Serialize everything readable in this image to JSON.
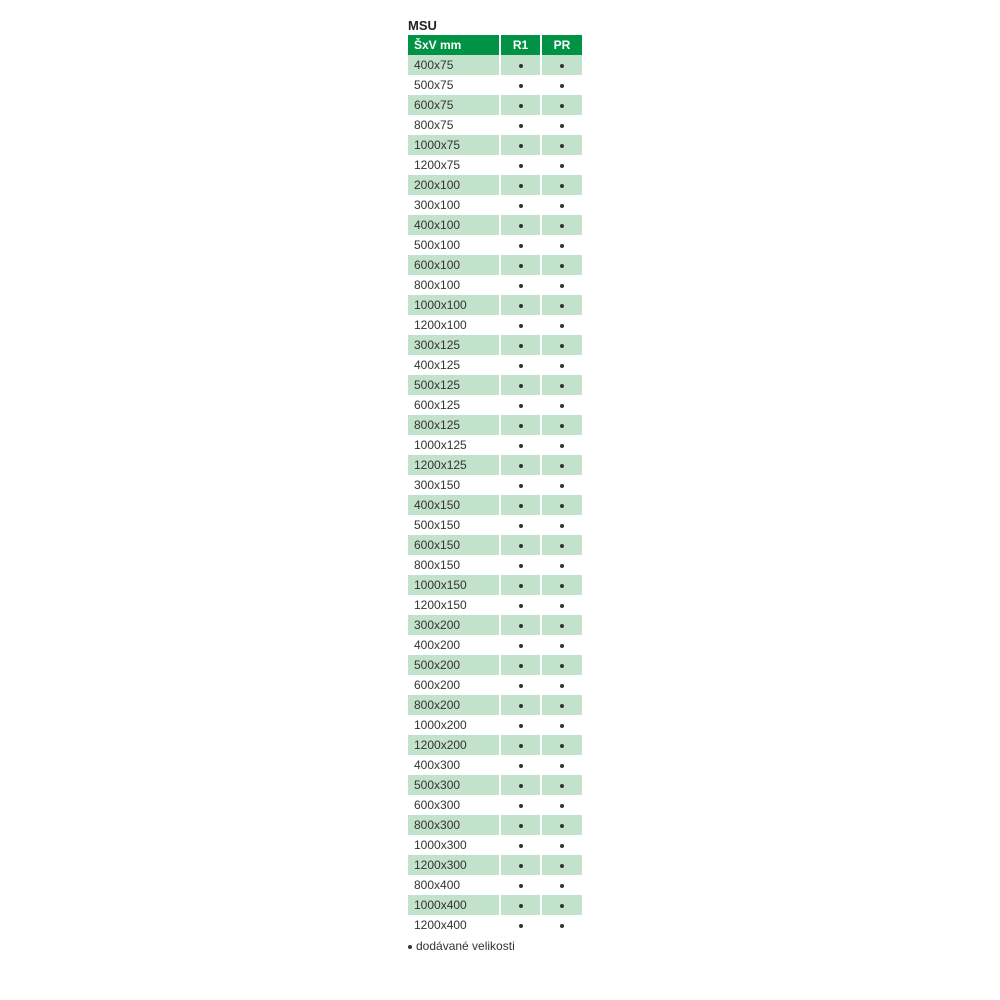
{
  "title": "MSU",
  "header_bg": "#009245",
  "row_alt_bg": "#c2e2cc",
  "row_bg": "#ffffff",
  "columns": [
    "ŠxV mm",
    "R1",
    "PR"
  ],
  "footnote": "dodávané velikosti",
  "rows": [
    {
      "size": "400x75",
      "r1": true,
      "pr": true
    },
    {
      "size": "500x75",
      "r1": true,
      "pr": true
    },
    {
      "size": "600x75",
      "r1": true,
      "pr": true
    },
    {
      "size": "800x75",
      "r1": true,
      "pr": true
    },
    {
      "size": "1000x75",
      "r1": true,
      "pr": true
    },
    {
      "size": "1200x75",
      "r1": true,
      "pr": true
    },
    {
      "size": "200x100",
      "r1": true,
      "pr": true
    },
    {
      "size": "300x100",
      "r1": true,
      "pr": true
    },
    {
      "size": "400x100",
      "r1": true,
      "pr": true
    },
    {
      "size": "500x100",
      "r1": true,
      "pr": true
    },
    {
      "size": "600x100",
      "r1": true,
      "pr": true
    },
    {
      "size": "800x100",
      "r1": true,
      "pr": true
    },
    {
      "size": "1000x100",
      "r1": true,
      "pr": true
    },
    {
      "size": "1200x100",
      "r1": true,
      "pr": true
    },
    {
      "size": "300x125",
      "r1": true,
      "pr": true
    },
    {
      "size": "400x125",
      "r1": true,
      "pr": true
    },
    {
      "size": "500x125",
      "r1": true,
      "pr": true
    },
    {
      "size": "600x125",
      "r1": true,
      "pr": true
    },
    {
      "size": "800x125",
      "r1": true,
      "pr": true
    },
    {
      "size": "1000x125",
      "r1": true,
      "pr": true
    },
    {
      "size": "1200x125",
      "r1": true,
      "pr": true
    },
    {
      "size": "300x150",
      "r1": true,
      "pr": true
    },
    {
      "size": "400x150",
      "r1": true,
      "pr": true
    },
    {
      "size": "500x150",
      "r1": true,
      "pr": true
    },
    {
      "size": "600x150",
      "r1": true,
      "pr": true
    },
    {
      "size": "800x150",
      "r1": true,
      "pr": true
    },
    {
      "size": "1000x150",
      "r1": true,
      "pr": true
    },
    {
      "size": "1200x150",
      "r1": true,
      "pr": true
    },
    {
      "size": "300x200",
      "r1": true,
      "pr": true
    },
    {
      "size": "400x200",
      "r1": true,
      "pr": true
    },
    {
      "size": "500x200",
      "r1": true,
      "pr": true
    },
    {
      "size": "600x200",
      "r1": true,
      "pr": true
    },
    {
      "size": "800x200",
      "r1": true,
      "pr": true
    },
    {
      "size": "1000x200",
      "r1": true,
      "pr": true
    },
    {
      "size": "1200x200",
      "r1": true,
      "pr": true
    },
    {
      "size": "400x300",
      "r1": true,
      "pr": true
    },
    {
      "size": "500x300",
      "r1": true,
      "pr": true
    },
    {
      "size": "600x300",
      "r1": true,
      "pr": true
    },
    {
      "size": "800x300",
      "r1": true,
      "pr": true
    },
    {
      "size": "1000x300",
      "r1": true,
      "pr": true
    },
    {
      "size": "1200x300",
      "r1": true,
      "pr": true
    },
    {
      "size": "800x400",
      "r1": true,
      "pr": true
    },
    {
      "size": "1000x400",
      "r1": true,
      "pr": true
    },
    {
      "size": "1200x400",
      "r1": true,
      "pr": true
    }
  ]
}
